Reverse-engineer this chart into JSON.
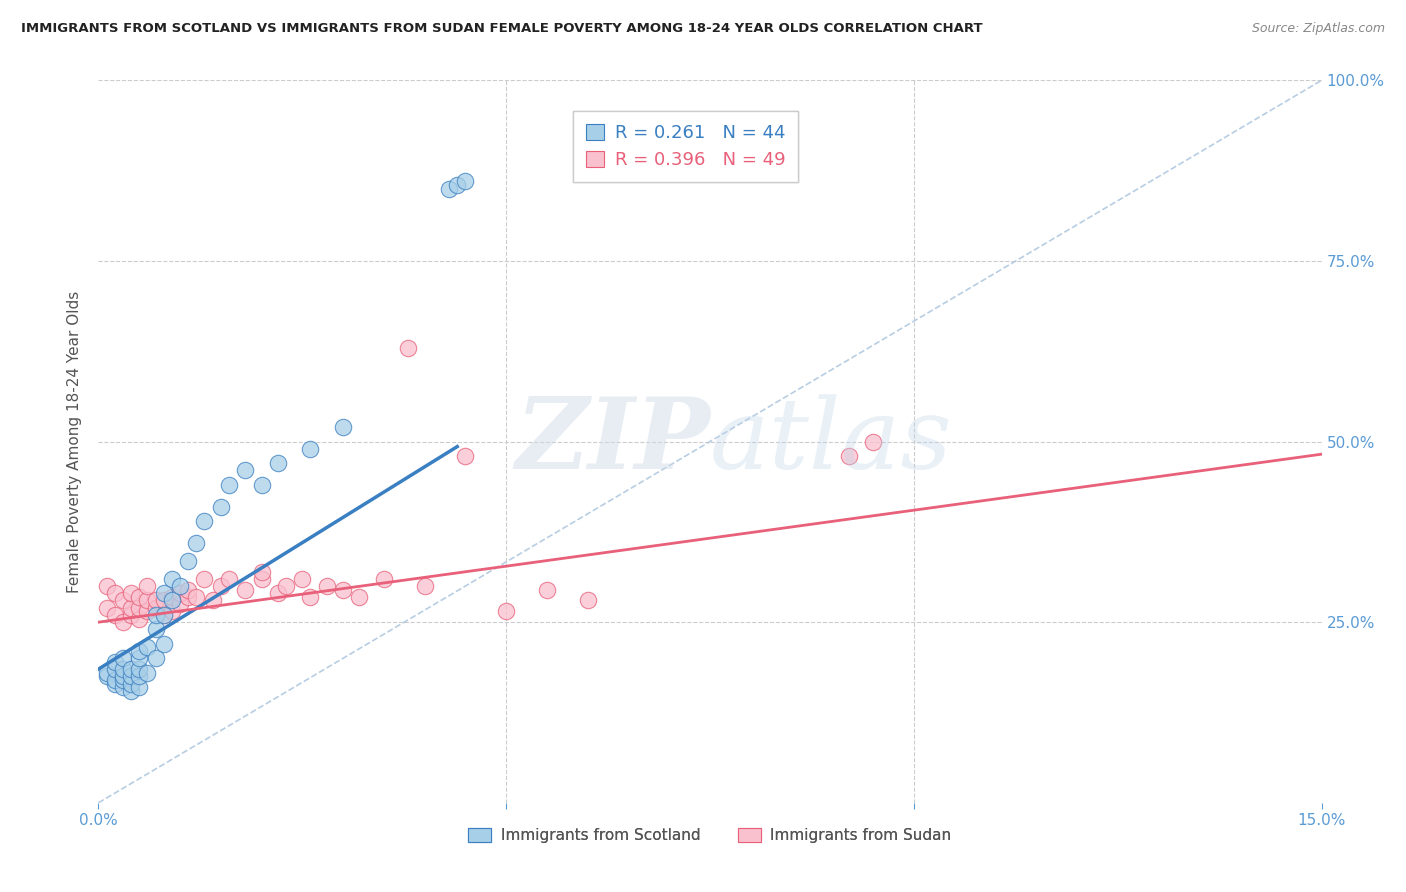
{
  "title": "IMMIGRANTS FROM SCOTLAND VS IMMIGRANTS FROM SUDAN FEMALE POVERTY AMONG 18-24 YEAR OLDS CORRELATION CHART",
  "source": "Source: ZipAtlas.com",
  "ylabel": "Female Poverty Among 18-24 Year Olds",
  "xlim": [
    0.0,
    0.15
  ],
  "ylim": [
    0.0,
    1.0
  ],
  "scotland_R": 0.261,
  "scotland_N": 44,
  "sudan_R": 0.396,
  "sudan_N": 49,
  "scotland_color": "#a8cfe8",
  "sudan_color": "#f9c0ce",
  "scotland_line_color": "#3a7fc1",
  "sudan_line_color": "#e8607a",
  "diagonal_color": "#b0c8e0",
  "watermark_zip": "ZIP",
  "watermark_atlas": "atlas",
  "background_color": "#ffffff",
  "grid_color": "#cccccc",
  "scotland_points_x": [
    0.001,
    0.001,
    0.002,
    0.002,
    0.002,
    0.002,
    0.003,
    0.003,
    0.003,
    0.003,
    0.003,
    0.004,
    0.004,
    0.004,
    0.004,
    0.005,
    0.005,
    0.005,
    0.005,
    0.005,
    0.006,
    0.006,
    0.007,
    0.007,
    0.007,
    0.008,
    0.008,
    0.008,
    0.009,
    0.009,
    0.01,
    0.011,
    0.012,
    0.013,
    0.015,
    0.016,
    0.018,
    0.02,
    0.022,
    0.026,
    0.03,
    0.043,
    0.044,
    0.045
  ],
  "scotland_points_y": [
    0.175,
    0.18,
    0.165,
    0.17,
    0.185,
    0.195,
    0.16,
    0.17,
    0.175,
    0.185,
    0.2,
    0.155,
    0.165,
    0.175,
    0.185,
    0.16,
    0.175,
    0.185,
    0.2,
    0.21,
    0.18,
    0.215,
    0.2,
    0.24,
    0.26,
    0.22,
    0.26,
    0.29,
    0.28,
    0.31,
    0.3,
    0.335,
    0.36,
    0.39,
    0.41,
    0.44,
    0.46,
    0.44,
    0.47,
    0.49,
    0.52,
    0.85,
    0.855,
    0.86
  ],
  "sudan_points_x": [
    0.001,
    0.001,
    0.002,
    0.002,
    0.003,
    0.003,
    0.004,
    0.004,
    0.004,
    0.005,
    0.005,
    0.005,
    0.006,
    0.006,
    0.006,
    0.007,
    0.007,
    0.008,
    0.008,
    0.009,
    0.009,
    0.01,
    0.01,
    0.011,
    0.011,
    0.012,
    0.013,
    0.014,
    0.015,
    0.016,
    0.018,
    0.02,
    0.02,
    0.022,
    0.023,
    0.025,
    0.026,
    0.028,
    0.03,
    0.032,
    0.035,
    0.038,
    0.04,
    0.045,
    0.05,
    0.055,
    0.06,
    0.092,
    0.095
  ],
  "sudan_points_y": [
    0.27,
    0.3,
    0.26,
    0.29,
    0.25,
    0.28,
    0.26,
    0.27,
    0.29,
    0.255,
    0.27,
    0.285,
    0.265,
    0.28,
    0.3,
    0.27,
    0.28,
    0.26,
    0.28,
    0.265,
    0.285,
    0.275,
    0.29,
    0.285,
    0.295,
    0.285,
    0.31,
    0.28,
    0.3,
    0.31,
    0.295,
    0.31,
    0.32,
    0.29,
    0.3,
    0.31,
    0.285,
    0.3,
    0.295,
    0.285,
    0.31,
    0.63,
    0.3,
    0.48,
    0.265,
    0.295,
    0.28,
    0.48,
    0.5
  ],
  "scotland_trend_x": [
    0.0,
    0.044
  ],
  "scotland_trend_y_intercept": 0.185,
  "scotland_trend_slope": 7.0,
  "sudan_trend_x": [
    0.0,
    0.15
  ],
  "sudan_trend_y_intercept": 0.25,
  "sudan_trend_slope": 1.55
}
